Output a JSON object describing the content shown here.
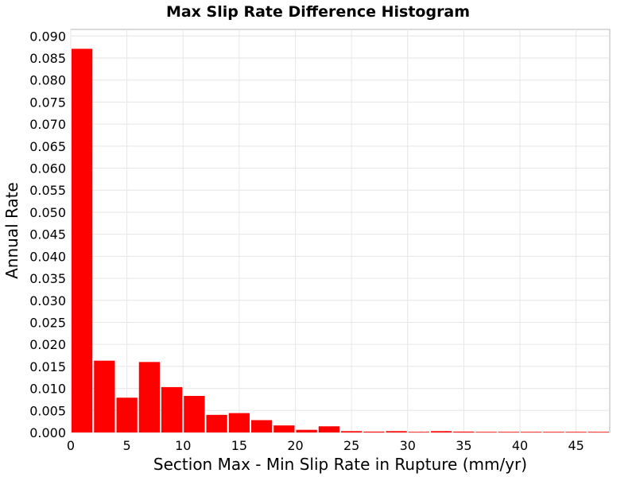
{
  "chart_data": {
    "type": "bar",
    "title": "Max Slip Rate Difference Histogram",
    "xlabel": "Section Max - Min Slip Rate in Rupture (mm/yr)",
    "ylabel": "Annual Rate",
    "xlim": [
      0,
      48
    ],
    "ylim": [
      0,
      0.0915
    ],
    "bin_width": 2,
    "x_ticks": [
      0,
      5,
      10,
      15,
      20,
      25,
      30,
      35,
      40,
      45
    ],
    "y_ticks": [
      0.0,
      0.005,
      0.01,
      0.015,
      0.02,
      0.025,
      0.03,
      0.035,
      0.04,
      0.045,
      0.05,
      0.055,
      0.06,
      0.065,
      0.07,
      0.075,
      0.08,
      0.085,
      0.09
    ],
    "y_tick_format_decimals": 3,
    "grid": true,
    "bar_color": "#ff0000",
    "bars": [
      {
        "x_start": 0,
        "value": 0.0871
      },
      {
        "x_start": 2,
        "value": 0.0163
      },
      {
        "x_start": 4,
        "value": 0.0079
      },
      {
        "x_start": 6,
        "value": 0.016
      },
      {
        "x_start": 8,
        "value": 0.0103
      },
      {
        "x_start": 10,
        "value": 0.0083
      },
      {
        "x_start": 12,
        "value": 0.004
      },
      {
        "x_start": 14,
        "value": 0.0044
      },
      {
        "x_start": 16,
        "value": 0.0028
      },
      {
        "x_start": 18,
        "value": 0.0016
      },
      {
        "x_start": 20,
        "value": 0.0006
      },
      {
        "x_start": 22,
        "value": 0.0014
      },
      {
        "x_start": 24,
        "value": 0.0003
      },
      {
        "x_start": 26,
        "value": 0.0002
      },
      {
        "x_start": 28,
        "value": 0.0003
      },
      {
        "x_start": 30,
        "value": 0.0001
      },
      {
        "x_start": 32,
        "value": 0.0003
      },
      {
        "x_start": 34,
        "value": 0.0002
      },
      {
        "x_start": 36,
        "value": 0.0001
      },
      {
        "x_start": 38,
        "value": 0.0001
      },
      {
        "x_start": 40,
        "value": 0.0001
      },
      {
        "x_start": 42,
        "value": 0.0001
      },
      {
        "x_start": 44,
        "value": 0.0001
      },
      {
        "x_start": 46,
        "value": 0.0001
      }
    ]
  }
}
